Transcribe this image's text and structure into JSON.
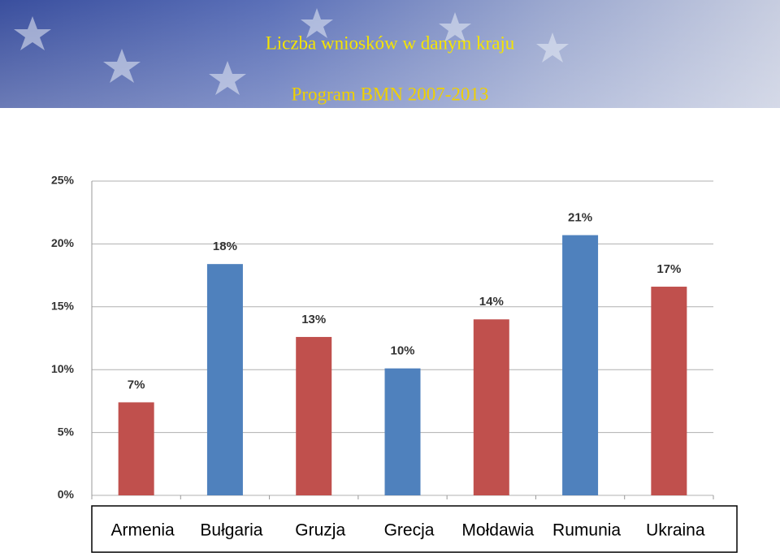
{
  "chart_data": {
    "type": "bar",
    "title": "Liczba wniosków w danym kraju",
    "subtitle": "Program BMN 2007-2013",
    "categories": [
      "Armenia",
      "Bułgaria",
      "Gruzja",
      "Grecja",
      "Mołdawia",
      "Rumunia",
      "Ukraina"
    ],
    "values": [
      7.4,
      18.4,
      12.6,
      10.1,
      14.0,
      20.7,
      16.6
    ],
    "value_labels": [
      "7%",
      "18%",
      "13%",
      "10%",
      "14%",
      "21%",
      "17%"
    ],
    "colors": [
      "#c0504d",
      "#4f81bd",
      "#c0504d",
      "#4f81bd",
      "#c0504d",
      "#4f81bd",
      "#c0504d"
    ],
    "ylim": [
      0,
      25
    ],
    "yticks": [
      {
        "value": 0,
        "label": "0%"
      },
      {
        "value": 5,
        "label": "5%"
      },
      {
        "value": 10,
        "label": "10%"
      },
      {
        "value": 15,
        "label": "15%"
      },
      {
        "value": 20,
        "label": "20%"
      },
      {
        "value": 25,
        "label": "25%"
      }
    ],
    "grid": true
  }
}
